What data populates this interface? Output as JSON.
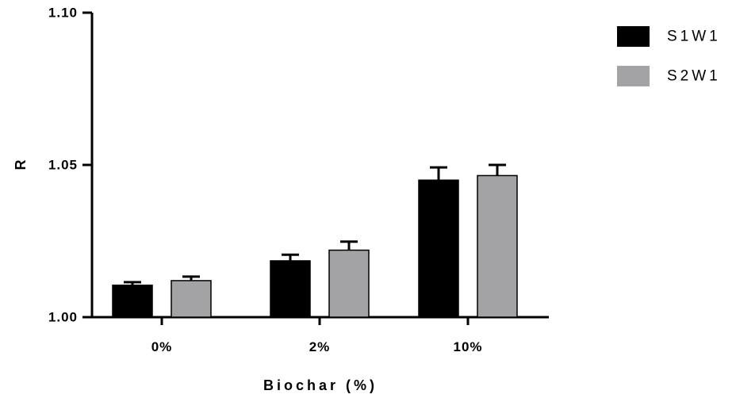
{
  "chart_data": {
    "type": "bar",
    "title": "",
    "xlabel": "Biochar (%)",
    "ylabel": "R",
    "ylim": [
      1.0,
      1.1
    ],
    "yticks": [
      "1.00",
      "1.05",
      "1.10"
    ],
    "categories": [
      "0%",
      "2%",
      "10%"
    ],
    "series": [
      {
        "name": "S1W1",
        "color": "#000000",
        "values": [
          1.0105,
          1.0185,
          1.045
        ],
        "errors": [
          0.001,
          0.002,
          0.0042
        ]
      },
      {
        "name": "S2W1",
        "color": "#a3a3a6",
        "values": [
          1.012,
          1.022,
          1.0465
        ],
        "errors": [
          0.0013,
          0.0028,
          0.0035
        ]
      }
    ],
    "legend_position": "top-right",
    "grid": false
  }
}
